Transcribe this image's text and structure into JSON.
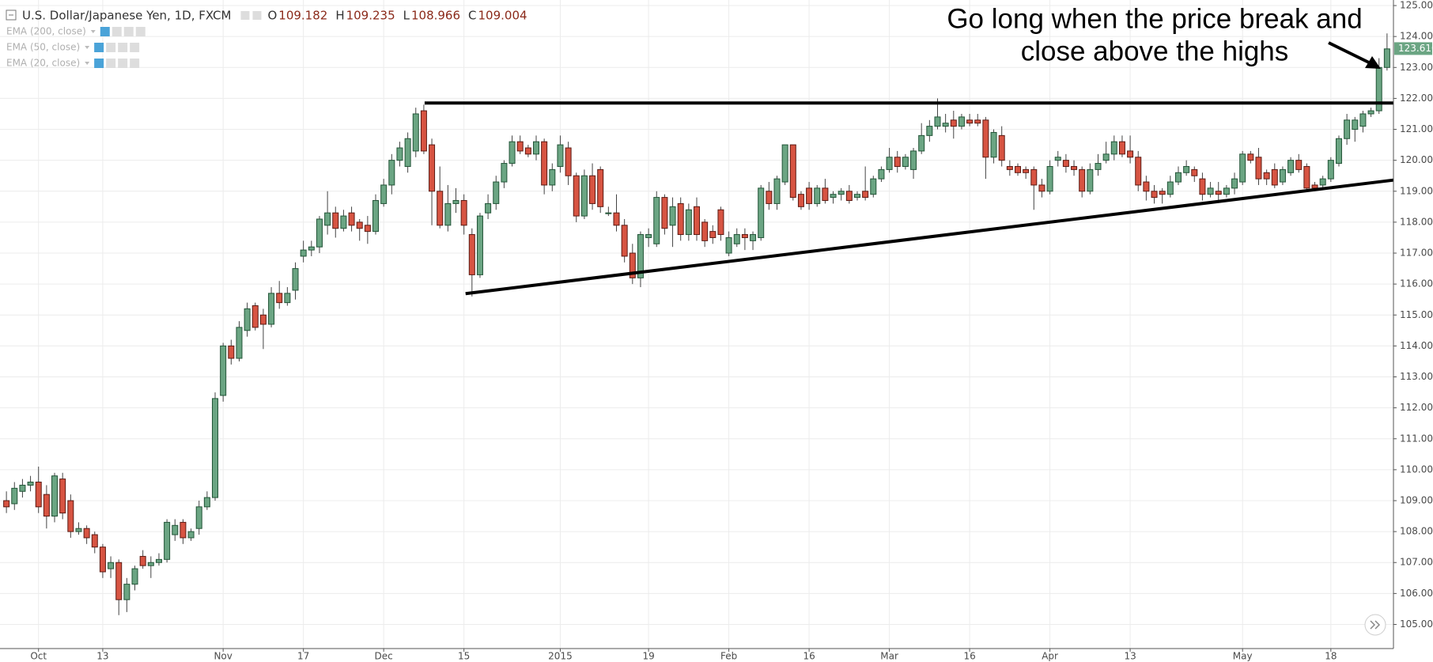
{
  "chart_data": {
    "type": "candlestick",
    "symbol": "U.S. Dollar/Japanese Yen, 1D, FXCM",
    "ohlc_header": [
      {
        "key": "O",
        "value": "109.182"
      },
      {
        "key": "H",
        "value": "109.235"
      },
      {
        "key": "L",
        "value": "108.966"
      },
      {
        "key": "C",
        "value": "109.004"
      }
    ],
    "indicators": [
      "EMA (200, close)",
      "EMA (50, close)",
      "EMA (20, close)"
    ],
    "annotation": [
      "Go long when the price break and",
      "close above the highs"
    ],
    "up_color": "#6ba583",
    "down_color": "#d75442",
    "open": [
      109.0,
      108.9,
      109.3,
      109.5,
      109.6,
      109.2,
      108.5,
      109.7,
      109.0,
      108.0,
      108.1,
      107.9,
      107.5,
      106.8,
      107.0,
      105.8,
      106.3,
      107.2,
      106.9,
      107.0,
      107.1,
      107.9,
      108.3,
      107.8,
      108.1,
      108.8,
      109.1,
      112.4,
      114.0,
      113.6,
      114.5,
      115.3,
      115.0,
      114.7,
      115.7,
      115.4,
      115.8,
      116.9,
      117.1,
      117.2,
      117.9,
      118.3,
      117.8,
      118.3,
      118.0,
      117.9,
      117.7,
      118.6,
      119.2,
      120.0,
      119.8,
      120.3,
      121.6,
      120.5,
      119.0,
      117.9,
      118.6,
      118.7,
      117.6,
      116.3,
      118.3,
      118.6,
      119.3,
      119.9,
      120.6,
      120.4,
      120.2,
      120.6,
      119.2,
      119.8,
      120.4,
      119.5,
      118.2,
      119.5,
      119.7,
      118.3,
      118.3,
      117.9,
      117.0,
      116.2,
      117.5,
      117.3,
      118.8,
      117.9,
      118.6,
      117.6,
      118.5,
      118.0,
      117.7,
      118.4,
      117.0,
      117.3,
      117.6,
      117.4,
      117.5,
      119.0,
      118.6,
      119.3,
      120.5,
      118.9,
      119.1,
      118.6,
      119.1,
      118.8,
      118.9,
      119.0,
      118.8,
      119.0,
      118.9,
      119.4,
      119.7,
      120.1,
      119.8,
      119.7,
      120.3,
      120.8,
      121.1,
      121.1,
      121.3,
      121.1,
      121.3,
      121.3,
      121.3,
      120.1,
      120.8,
      119.8,
      119.8,
      119.7,
      119.7,
      119.2,
      119.0,
      120.0,
      120.0,
      119.8,
      119.7,
      119.0,
      119.7,
      120.0,
      120.2,
      120.6,
      120.3,
      120.1,
      119.3,
      119.0,
      119.0,
      118.9,
      119.3,
      119.6,
      119.7,
      119.4,
      118.9,
      119.0,
      118.9,
      119.1,
      119.3,
      120.2,
      120.1,
      119.6,
      119.7,
      119.3,
      119.6,
      120.0,
      119.8,
      119.2,
      119.2,
      119.4,
      119.9,
      120.7,
      121.0,
      121.1,
      121.5,
      121.6,
      123.0
    ],
    "high": [
      109.3,
      109.6,
      109.7,
      109.8,
      110.1,
      109.5,
      109.9,
      109.9,
      109.2,
      108.3,
      108.2,
      108.0,
      107.6,
      107.2,
      107.1,
      106.5,
      106.9,
      107.4,
      107.2,
      107.3,
      108.4,
      108.4,
      108.4,
      108.1,
      109.0,
      109.3,
      112.5,
      114.1,
      114.2,
      114.8,
      115.4,
      115.4,
      115.2,
      115.9,
      116.1,
      115.9,
      116.7,
      117.4,
      117.4,
      118.2,
      119.0,
      118.5,
      118.4,
      118.5,
      118.1,
      118.2,
      118.9,
      119.4,
      120.2,
      120.6,
      120.9,
      121.7,
      121.8,
      120.7,
      119.8,
      119.2,
      119.1,
      118.9,
      117.8,
      118.3,
      118.9,
      119.5,
      120.0,
      120.8,
      120.8,
      120.5,
      120.8,
      120.7,
      119.9,
      120.8,
      120.6,
      119.6,
      119.7,
      119.9,
      119.8,
      118.5,
      118.9,
      118.1,
      117.3,
      117.7,
      117.8,
      119.0,
      118.9,
      118.8,
      118.8,
      118.6,
      118.8,
      118.1,
      117.9,
      118.5,
      117.7,
      117.8,
      117.8,
      117.7,
      119.2,
      119.3,
      119.5,
      120.5,
      120.5,
      119.0,
      119.3,
      119.2,
      119.4,
      119.0,
      119.1,
      119.2,
      119.0,
      119.8,
      119.5,
      119.8,
      120.4,
      120.3,
      120.2,
      120.4,
      121.2,
      121.3,
      122.0,
      121.5,
      121.6,
      121.5,
      121.5,
      121.5,
      121.4,
      121.0,
      121.1,
      120.0,
      119.9,
      119.8,
      119.8,
      119.4,
      120.0,
      120.3,
      120.2,
      120.0,
      119.8,
      119.9,
      120.2,
      120.6,
      120.8,
      120.8,
      120.8,
      120.3,
      119.5,
      119.2,
      119.1,
      119.5,
      119.8,
      120.0,
      119.8,
      119.6,
      119.3,
      119.3,
      119.2,
      119.6,
      120.3,
      120.3,
      120.4,
      119.7,
      119.9,
      119.8,
      120.1,
      120.2,
      119.9,
      119.3,
      119.5,
      120.1,
      120.8,
      121.5,
      121.4,
      121.6,
      121.7,
      123.3,
      124.1
    ],
    "low": [
      108.6,
      108.7,
      109.1,
      109.3,
      108.6,
      108.1,
      108.3,
      108.4,
      107.8,
      107.9,
      107.6,
      107.3,
      106.5,
      106.5,
      105.3,
      105.4,
      106.1,
      106.8,
      106.5,
      106.9,
      107.0,
      107.7,
      107.6,
      107.7,
      107.9,
      108.7,
      109.0,
      112.2,
      113.4,
      113.5,
      114.3,
      114.5,
      113.9,
      114.6,
      115.2,
      115.3,
      115.5,
      116.7,
      116.9,
      117.0,
      117.6,
      117.5,
      117.7,
      117.7,
      117.4,
      117.3,
      117.6,
      118.5,
      118.9,
      119.8,
      119.6,
      120.1,
      120.2,
      117.9,
      117.8,
      117.7,
      118.3,
      117.6,
      115.6,
      116.2,
      118.1,
      118.4,
      119.1,
      119.8,
      120.2,
      120.1,
      120.0,
      118.9,
      119.0,
      119.6,
      119.2,
      118.0,
      118.1,
      118.4,
      118.3,
      118.2,
      117.7,
      116.7,
      116.0,
      115.9,
      117.2,
      117.2,
      117.6,
      117.2,
      117.4,
      117.4,
      117.4,
      117.2,
      117.3,
      117.4,
      116.9,
      117.2,
      117.1,
      117.1,
      117.4,
      118.4,
      118.4,
      119.2,
      118.7,
      118.4,
      118.4,
      118.5,
      118.6,
      118.6,
      118.7,
      118.6,
      118.7,
      118.7,
      118.8,
      119.3,
      119.6,
      119.6,
      119.7,
      119.4,
      120.2,
      120.6,
      121.0,
      120.9,
      120.7,
      121.0,
      121.1,
      121.1,
      119.4,
      119.9,
      119.8,
      119.5,
      119.5,
      119.4,
      118.4,
      118.8,
      118.9,
      119.8,
      119.6,
      119.5,
      118.8,
      118.9,
      119.5,
      119.9,
      120.0,
      120.1,
      119.9,
      119.0,
      118.7,
      118.6,
      118.6,
      118.8,
      119.2,
      119.5,
      119.3,
      118.7,
      118.8,
      118.7,
      118.8,
      118.9,
      119.2,
      119.9,
      119.2,
      119.2,
      119.1,
      119.2,
      119.5,
      119.6,
      119.0,
      119.0,
      119.1,
      119.3,
      119.8,
      120.5,
      120.6,
      120.9,
      121.4,
      121.5,
      122.9
    ],
    "close": [
      108.8,
      109.4,
      109.5,
      109.6,
      108.8,
      108.5,
      109.8,
      108.6,
      108.0,
      108.1,
      107.8,
      107.5,
      106.7,
      107.0,
      105.8,
      106.3,
      106.8,
      106.9,
      107.0,
      107.1,
      108.3,
      108.2,
      107.8,
      108.0,
      108.8,
      109.1,
      112.3,
      114.0,
      113.6,
      114.6,
      115.2,
      114.6,
      114.7,
      115.7,
      115.4,
      115.7,
      116.5,
      117.1,
      117.2,
      118.1,
      118.3,
      117.8,
      118.2,
      117.9,
      117.8,
      117.7,
      118.7,
      119.2,
      120.0,
      120.4,
      120.7,
      121.5,
      120.3,
      119.0,
      117.9,
      118.6,
      118.7,
      117.9,
      116.3,
      118.2,
      118.6,
      119.3,
      119.9,
      120.6,
      120.3,
      120.2,
      120.6,
      119.2,
      119.7,
      120.5,
      119.5,
      118.2,
      119.5,
      118.6,
      118.5,
      118.3,
      117.9,
      116.9,
      116.2,
      117.6,
      117.6,
      118.8,
      117.8,
      118.5,
      117.6,
      118.4,
      117.6,
      117.4,
      117.5,
      117.6,
      117.5,
      117.6,
      117.5,
      117.6,
      119.1,
      118.6,
      119.4,
      120.5,
      118.8,
      118.5,
      118.6,
      119.1,
      118.7,
      118.9,
      119.0,
      118.7,
      118.9,
      118.8,
      119.4,
      119.7,
      120.1,
      119.8,
      120.1,
      120.3,
      120.8,
      121.1,
      121.4,
      121.2,
      121.1,
      121.4,
      121.2,
      121.2,
      120.1,
      120.9,
      120.0,
      119.7,
      119.6,
      119.6,
      119.2,
      119.0,
      119.8,
      120.1,
      119.8,
      119.7,
      119.0,
      119.7,
      119.9,
      120.2,
      120.6,
      120.2,
      120.1,
      119.2,
      119.0,
      118.8,
      118.9,
      119.3,
      119.6,
      119.8,
      119.5,
      118.9,
      119.1,
      118.9,
      119.1,
      119.4,
      120.2,
      120.0,
      119.4,
      119.4,
      119.2,
      119.7,
      120.0,
      119.7,
      119.1,
      119.1,
      119.4,
      120.0,
      120.7,
      121.3,
      121.3,
      121.5,
      121.6,
      123.0,
      123.6
    ],
    "xlim": [
      -0.8,
      172.8
    ],
    "xticks": [
      {
        "value": 4,
        "label": "Oct"
      },
      {
        "value": 12,
        "label": "13"
      },
      {
        "value": 27,
        "label": "Nov"
      },
      {
        "value": 37,
        "label": "17"
      },
      {
        "value": 47,
        "label": "Dec"
      },
      {
        "value": 57,
        "label": "15"
      },
      {
        "value": 69,
        "label": "2015"
      },
      {
        "value": 80,
        "label": "19"
      },
      {
        "value": 90,
        "label": "Feb"
      },
      {
        "value": 100,
        "label": "16"
      },
      {
        "value": 110,
        "label": "Mar"
      },
      {
        "value": 120,
        "label": "16"
      },
      {
        "value": 130,
        "label": "Apr"
      },
      {
        "value": 140,
        "label": "13"
      },
      {
        "value": 154,
        "label": "May"
      },
      {
        "value": 165,
        "label": "18"
      }
    ],
    "ylim": [
      104.22,
      125.18
    ],
    "yticks": [
      {
        "value": 105,
        "label": "105.000"
      },
      {
        "value": 106,
        "label": "106.000"
      },
      {
        "value": 107,
        "label": "107.000"
      },
      {
        "value": 108,
        "label": "108.000"
      },
      {
        "value": 109,
        "label": "109.000"
      },
      {
        "value": 110,
        "label": "110.000"
      },
      {
        "value": 111,
        "label": "111.000"
      },
      {
        "value": 112,
        "label": "112.000"
      },
      {
        "value": 113,
        "label": "113.000"
      },
      {
        "value": 114,
        "label": "114.000"
      },
      {
        "value": 115,
        "label": "115.000"
      },
      {
        "value": 116,
        "label": "116.000"
      },
      {
        "value": 117,
        "label": "117.000"
      },
      {
        "value": 118,
        "label": "118.000"
      },
      {
        "value": 119,
        "label": "119.000"
      },
      {
        "value": 120,
        "label": "120.000"
      },
      {
        "value": 121,
        "label": "121.000"
      },
      {
        "value": 122,
        "label": "122.000"
      },
      {
        "value": 123,
        "label": "123.000"
      },
      {
        "value": 124,
        "label": "124.000"
      },
      {
        "value": 125,
        "label": "125.000"
      }
    ],
    "grid": true,
    "last_price": {
      "value": 123.61,
      "label": "123.610"
    },
    "trendlines": [
      {
        "x": [
          52.1,
          172.8
        ],
        "y": [
          121.85,
          121.85
        ]
      },
      {
        "x": [
          57.2,
          172.8
        ],
        "y": [
          115.69,
          119.36
        ]
      }
    ]
  }
}
